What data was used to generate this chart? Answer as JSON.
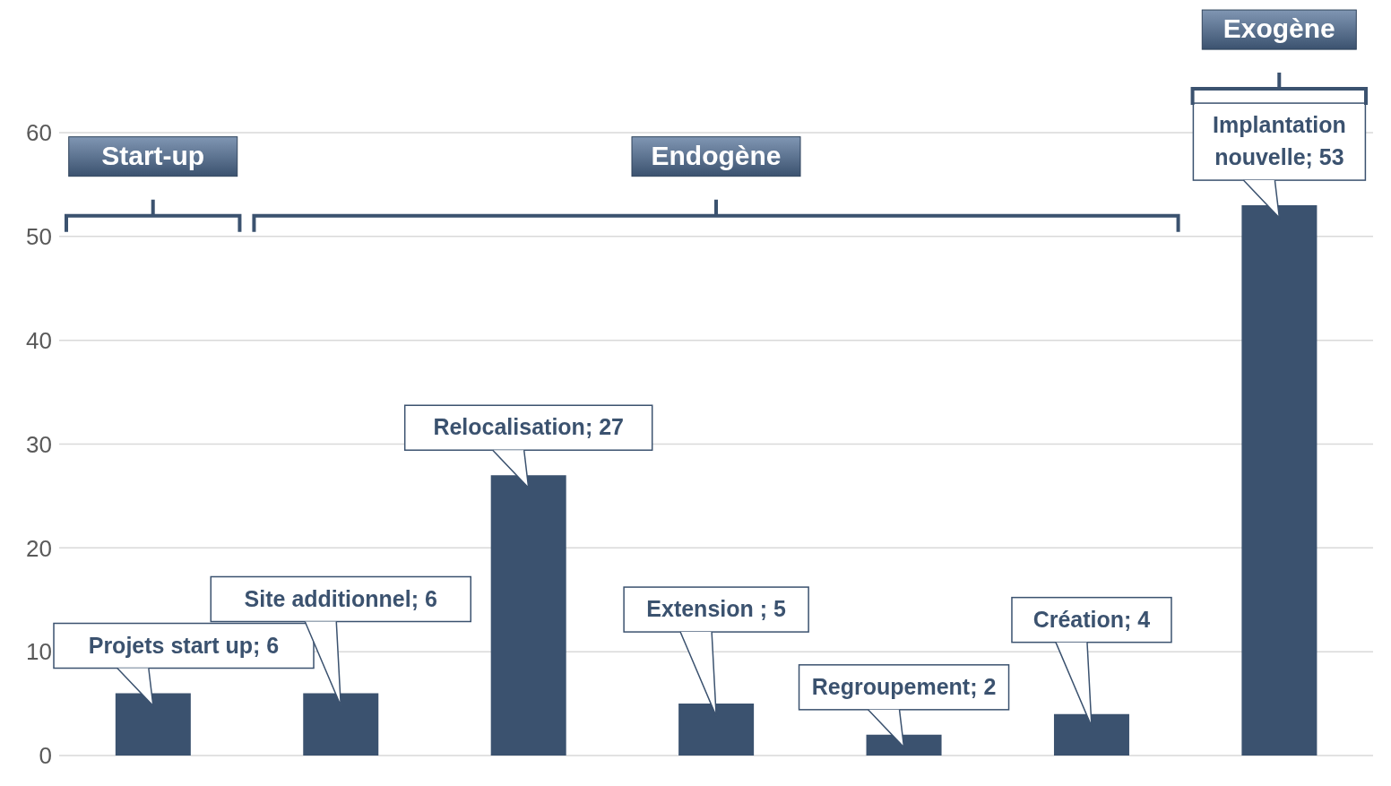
{
  "chart_data": {
    "type": "bar",
    "categories": [
      null,
      null,
      null,
      null,
      null,
      null,
      null
    ],
    "values": [
      6,
      6,
      27,
      5,
      2,
      4,
      53
    ],
    "value_labels": [
      "Projets start up; 6",
      "Site additionnel; 6",
      "Relocalisation; 27",
      "Extension ; 5",
      "Regroupement; 2",
      "Création; 4",
      "Implantation nouvelle; 53"
    ],
    "color": "#3b526f",
    "ylim": [
      0,
      60
    ],
    "yticks": [
      0,
      10,
      20,
      30,
      40,
      50,
      60
    ],
    "grid": "y",
    "annotations": [
      "Start-up",
      "Endogène",
      "Exogène"
    ]
  }
}
